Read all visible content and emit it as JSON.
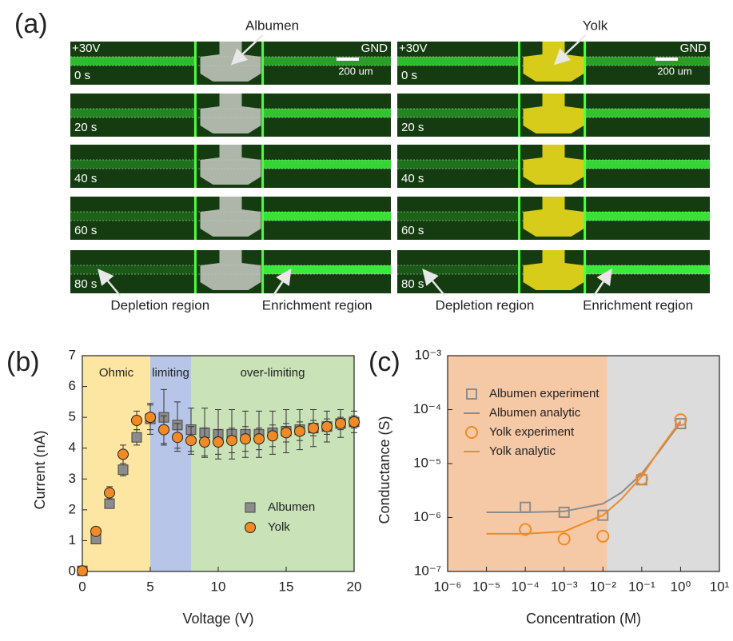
{
  "panel_a": {
    "label": "(a)",
    "columns": [
      {
        "sample": "Albumen",
        "sample_color": "#c8cbc3",
        "left_label": "+30V",
        "right_label": "GND",
        "scale_bar": "200 um",
        "times": [
          "0 s",
          "20 s",
          "40 s",
          "60 s",
          "80 s"
        ],
        "regions": [
          "Depletion region",
          "Enrichment region"
        ]
      },
      {
        "sample": "Yolk",
        "sample_color": "#d8cc1a",
        "left_label": "+30V",
        "right_label": "GND",
        "scale_bar": "200 um",
        "times": [
          "0 s",
          "20 s",
          "40 s",
          "60 s",
          "80 s"
        ],
        "regions": [
          "Depletion region",
          "Enrichment region"
        ]
      }
    ]
  },
  "chart_data": [
    {
      "type": "scatter",
      "panel_label": "(b)",
      "x_label": "Voltage (V)",
      "y_label": "Current (nA)",
      "xlim": [
        0,
        20
      ],
      "ylim": [
        0,
        7
      ],
      "xticks": [
        0,
        5,
        10,
        15,
        20
      ],
      "yticks": [
        0,
        1,
        2,
        3,
        4,
        5,
        6,
        7
      ],
      "regions": [
        {
          "label": "Ohmic",
          "from": 0,
          "to": 5,
          "color": "#fde6a2"
        },
        {
          "label": "limiting",
          "from": 5,
          "to": 8,
          "color": "#b7c6e8"
        },
        {
          "label": "over-limiting",
          "from": 8,
          "to": 20,
          "color": "#c9e2b8"
        }
      ],
      "legend": "lower right",
      "x": [
        0,
        1,
        2,
        3,
        4,
        5,
        6,
        7,
        8,
        9,
        10,
        11,
        12,
        13,
        14,
        15,
        16,
        17,
        18,
        19,
        20
      ],
      "series": [
        {
          "name": "Albumen",
          "color": "#8c8c8c",
          "marker": "square",
          "values": [
            0.02,
            1.05,
            2.2,
            3.3,
            4.35,
            4.95,
            5.0,
            4.75,
            4.6,
            4.5,
            4.45,
            4.45,
            4.45,
            4.45,
            4.5,
            4.55,
            4.6,
            4.65,
            4.7,
            4.8,
            4.85
          ],
          "errors": [
            0,
            0.1,
            0.15,
            0.2,
            0.25,
            0.5,
            0.9,
            0.75,
            0.7,
            0.8,
            0.8,
            0.8,
            0.75,
            0.75,
            0.7,
            0.7,
            0.65,
            0.6,
            0.5,
            0.45,
            0.35
          ]
        },
        {
          "name": "Yolk",
          "color": "#f08a24",
          "marker": "circle",
          "values": [
            0.02,
            1.3,
            2.55,
            3.8,
            4.9,
            5.0,
            4.6,
            4.35,
            4.25,
            4.2,
            4.2,
            4.25,
            4.3,
            4.3,
            4.4,
            4.5,
            4.55,
            4.65,
            4.7,
            4.8,
            4.85
          ],
          "errors": [
            0,
            0.1,
            0.2,
            0.3,
            0.3,
            0.4,
            0.45,
            0.45,
            0.45,
            0.45,
            0.4,
            0.4,
            0.4,
            0.35,
            0.35,
            0.3,
            0.3,
            0.25,
            0.25,
            0.2,
            0.2
          ]
        }
      ]
    },
    {
      "type": "scatter",
      "panel_label": "(c)",
      "x_label": "Concentration (M)",
      "y_label": "Conductance (S)",
      "log_x": true,
      "log_y": true,
      "xlim": [
        1e-06,
        10
      ],
      "ylim": [
        1e-07,
        0.001
      ],
      "xticks": [
        {
          "value": 1e-06,
          "label": "10⁻⁶"
        },
        {
          "value": 1e-05,
          "label": "10⁻⁵"
        },
        {
          "value": 0.0001,
          "label": "10⁻⁴"
        },
        {
          "value": 0.001,
          "label": "10⁻³"
        },
        {
          "value": 0.01,
          "label": "10⁻²"
        },
        {
          "value": 0.1,
          "label": "10⁻¹"
        },
        {
          "value": 1,
          "label": "10⁰"
        },
        {
          "value": 10,
          "label": "10¹"
        }
      ],
      "yticks": [
        {
          "value": 1e-07,
          "label": "10⁻⁷"
        },
        {
          "value": 1e-06,
          "label": "10⁻⁶"
        },
        {
          "value": 1e-05,
          "label": "10⁻⁵"
        },
        {
          "value": 0.0001,
          "label": "10⁻⁴"
        },
        {
          "value": 0.001,
          "label": "10⁻³"
        }
      ],
      "regions": [
        {
          "from": 1e-06,
          "to": 0.013,
          "color": "#f6c9a6"
        },
        {
          "from": 0.013,
          "to": 10,
          "color": "#dcdcdc"
        }
      ],
      "legend": "upper left",
      "series": [
        {
          "name": "Albumen experiment",
          "color": "#8c8c8c",
          "marker": "square",
          "x": [
            0.0001,
            0.001,
            0.01,
            0.1,
            1
          ],
          "values": [
            1.55e-06,
            1.25e-06,
            1.1e-06,
            5e-06,
            5.5e-05
          ]
        },
        {
          "name": "Albumen analytic",
          "color": "#8c8c8c",
          "style": "line",
          "x": [
            1e-05,
            0.0001,
            0.001,
            0.01,
            0.03,
            0.1,
            0.3,
            1
          ],
          "values": [
            1.25e-06,
            1.25e-06,
            1.3e-06,
            1.8e-06,
            2.9e-06,
            6.5e-06,
            1.8e-05,
            5.8e-05
          ]
        },
        {
          "name": "Yolk experiment",
          "color": "#f08a24",
          "marker": "circle",
          "x": [
            0.0001,
            0.001,
            0.01,
            0.1,
            1
          ],
          "values": [
            6e-07,
            4e-07,
            4.5e-07,
            5.2e-06,
            6.5e-05
          ]
        },
        {
          "name": "Yolk analytic",
          "color": "#f08a24",
          "style": "line",
          "x": [
            1e-05,
            0.0001,
            0.001,
            0.01,
            0.03,
            0.1,
            0.3,
            1
          ],
          "values": [
            5e-07,
            5e-07,
            5.5e-07,
            1.1e-06,
            2.2e-06,
            5.8e-06,
            1.9e-05,
            6.2e-05
          ]
        }
      ]
    }
  ]
}
